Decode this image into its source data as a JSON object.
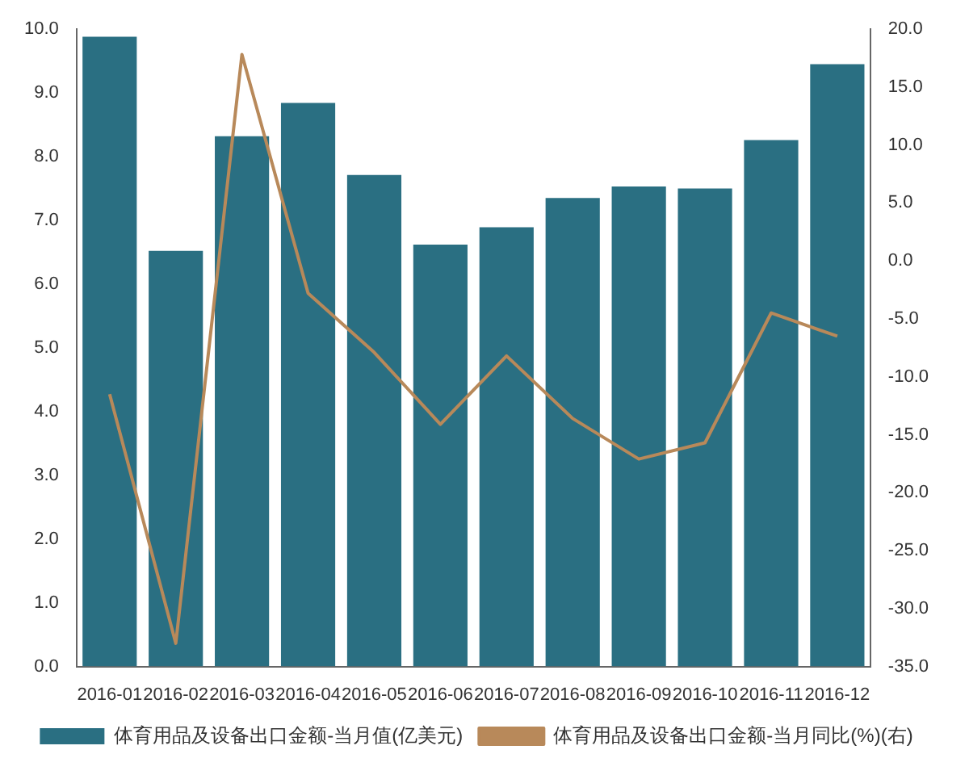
{
  "chart_data": {
    "type": "bar",
    "categories": [
      "2016-01",
      "2016-02",
      "2016-03",
      "2016-04",
      "2016-05",
      "2016-06",
      "2016-07",
      "2016-08",
      "2016-09",
      "2016-10",
      "2016-11",
      "2016-12"
    ],
    "series": [
      {
        "name": "体育用品及设备出口金额-当月值(亿美元)",
        "color": "#2a6f82",
        "values": [
          9.88,
          6.52,
          8.32,
          8.84,
          7.71,
          6.62,
          6.89,
          7.35,
          7.53,
          7.5,
          8.26,
          9.45
        ]
      },
      {
        "name": "体育用品及设备出口金额-当月同比(%)(右)",
        "type": "line",
        "axis": "y2",
        "color": "#b8895a",
        "values": [
          -11.5,
          -33.0,
          17.8,
          -2.8,
          -7.9,
          -14.1,
          -8.2,
          -13.6,
          -17.1,
          -15.7,
          -4.5,
          -6.5
        ]
      }
    ],
    "ylim": [
      0,
      10
    ],
    "yticks": [
      {
        "value": 0,
        "label": "0.0"
      },
      {
        "value": 1,
        "label": "1.0"
      },
      {
        "value": 2,
        "label": "2.0"
      },
      {
        "value": 3,
        "label": "3.0"
      },
      {
        "value": 4,
        "label": "4.0"
      },
      {
        "value": 5,
        "label": "5.0"
      },
      {
        "value": 6,
        "label": "6.0"
      },
      {
        "value": 7,
        "label": "7.0"
      },
      {
        "value": 8,
        "label": "8.0"
      },
      {
        "value": 9,
        "label": "9.0"
      },
      {
        "value": 10,
        "label": "10.0"
      }
    ],
    "y2lim": [
      -35,
      20
    ],
    "y2ticks": [
      {
        "value": -35,
        "label": "-35.0"
      },
      {
        "value": -30,
        "label": "-30.0"
      },
      {
        "value": -25,
        "label": "-25.0"
      },
      {
        "value": -20,
        "label": "-20.0"
      },
      {
        "value": -15,
        "label": "-15.0"
      },
      {
        "value": -10,
        "label": "-10.0"
      },
      {
        "value": -5,
        "label": "-5.0"
      },
      {
        "value": 0,
        "label": "0.0"
      },
      {
        "value": 5,
        "label": "5.0"
      },
      {
        "value": 10,
        "label": "10.0"
      },
      {
        "value": 15,
        "label": "15.0"
      },
      {
        "value": 20,
        "label": "20.0"
      }
    ],
    "grid": false,
    "legend": "bottom",
    "marker": "none"
  }
}
